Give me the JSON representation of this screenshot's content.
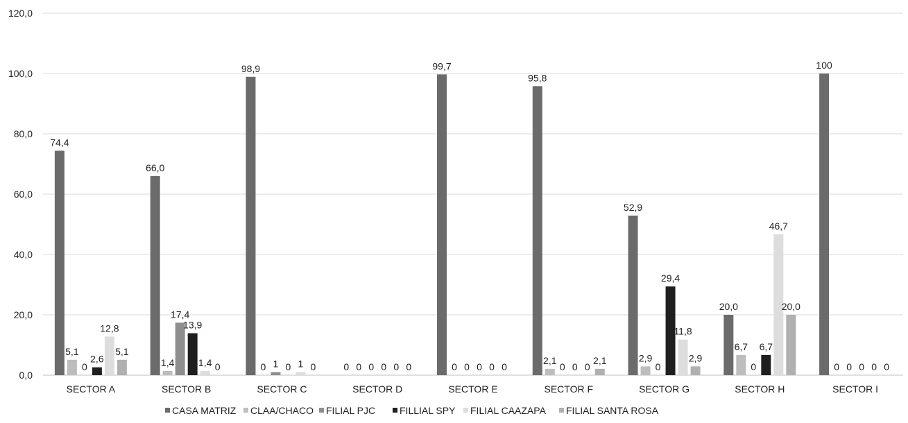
{
  "chart_data": {
    "type": "bar",
    "title": "",
    "xlabel": "",
    "ylabel": "",
    "ylim": [
      0,
      120
    ],
    "yticks": [
      "0,0",
      "20,0",
      "40,0",
      "60,0",
      "80,0",
      "100,0",
      "120,0"
    ],
    "ytick_values": [
      0,
      20,
      40,
      60,
      80,
      100,
      120
    ],
    "grid": true,
    "legend_position": "bottom",
    "categories": [
      "SECTOR A",
      "SECTOR B",
      "SECTOR C",
      "SECTOR D",
      "SECTOR E",
      "SECTOR F",
      "SECTOR G",
      "SECTOR H",
      "SECTOR I"
    ],
    "series": [
      {
        "name": "CASA MATRIZ",
        "color": "#6b6b6b",
        "values": [
          74.4,
          66.0,
          98.9,
          0,
          99.7,
          95.8,
          52.9,
          20.0,
          100
        ],
        "labels": [
          "74,4",
          "66,0",
          "98,9",
          "0",
          "99,7",
          "95,8",
          "52,9",
          "20,0",
          "100"
        ]
      },
      {
        "name": "CLAA/CHACO",
        "color": "#bdbdbd",
        "values": [
          5.1,
          1.4,
          0,
          0,
          0,
          2.1,
          2.9,
          6.7,
          0
        ],
        "labels": [
          "5,1",
          "1,4",
          "0",
          "0",
          "0",
          "2,1",
          "2,9",
          "6,7",
          "0"
        ]
      },
      {
        "name": "FILIAL PJC",
        "color": "#8e8e8e",
        "values": [
          0,
          17.4,
          1,
          0,
          0,
          0,
          0,
          0,
          0
        ],
        "labels": [
          "0",
          "17,4",
          "1",
          "0",
          "0",
          "0",
          "0",
          "0",
          "0"
        ]
      },
      {
        "name": "FILLIAL SPY",
        "color": "#1f1f1f",
        "values": [
          2.6,
          13.9,
          0,
          0,
          0,
          0,
          29.4,
          6.7,
          0
        ],
        "labels": [
          "2,6",
          "13,9",
          "0",
          "0",
          "0",
          "0",
          "29,4",
          "6,7",
          "0"
        ]
      },
      {
        "name": "FILIAL CAAZAPA",
        "color": "#dddddd",
        "values": [
          12.8,
          1.4,
          1,
          0,
          0,
          0,
          11.8,
          46.7,
          0
        ],
        "labels": [
          "12,8",
          "1,4",
          "1",
          "0",
          "0",
          "0",
          "11,8",
          "46,7",
          "0"
        ]
      },
      {
        "name": "FILIAL SANTA ROSA",
        "color": "#b0b0b0",
        "values": [
          5.1,
          0,
          0,
          0,
          0,
          2.1,
          2.9,
          20.0,
          0
        ],
        "labels": [
          "5,1",
          "0",
          "0",
          "0",
          "0",
          "2,1",
          "2,9",
          "20,0",
          "0"
        ]
      }
    ]
  }
}
